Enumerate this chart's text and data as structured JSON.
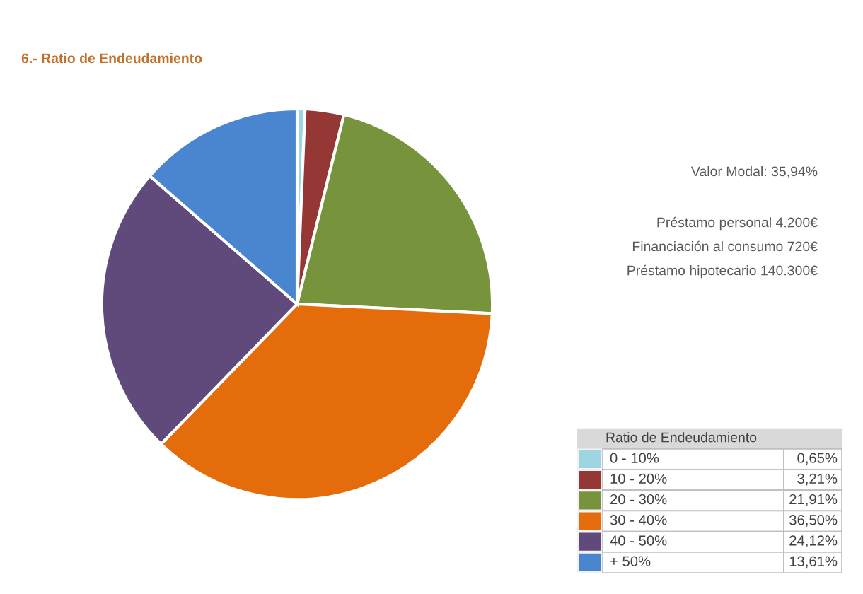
{
  "chart_data": {
    "type": "pie",
    "title": "6.- Ratio de Endeudamiento",
    "categories": [
      "0 - 10%",
      "10 - 20%",
      "20 - 30%",
      "30 - 40%",
      "40 - 50%",
      "+ 50%"
    ],
    "values": [
      0.65,
      3.21,
      21.91,
      36.5,
      24.12,
      13.61
    ],
    "colors": [
      "#9dd5e3",
      "#953735",
      "#77933c",
      "#e46c0a",
      "#604a7b",
      "#4a86cf"
    ],
    "value_labels": [
      "0,65%",
      "3,21%",
      "21,91%",
      "36,50%",
      "24,12%",
      "13,61%"
    ],
    "legend": "bottom right",
    "legend_title": "Ratio de Endeudamiento",
    "annotations": [
      "Valor Modal: 35,94%",
      "Préstamo personal 4.200€",
      "Financiación al consumo 720€",
      "Préstamo hipotecario 140.300€"
    ]
  }
}
